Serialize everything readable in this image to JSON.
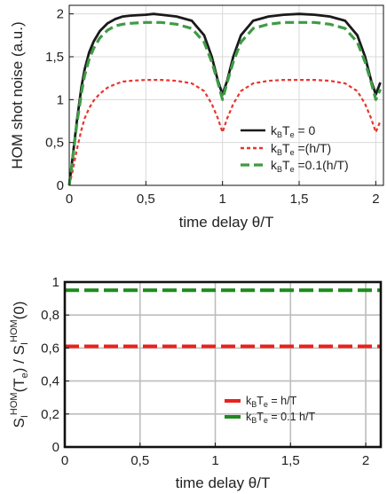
{
  "chart_data": [
    {
      "type": "line",
      "xlabel": "time delay θ/T",
      "ylabel": "HOM shot noise (a.u.)",
      "xlim": [
        0,
        2.05
      ],
      "ylim": [
        0,
        2.1
      ],
      "x_ticks": [
        "0",
        "0,5",
        "1",
        "1,5",
        "2"
      ],
      "y_ticks": [
        "0",
        "0,5",
        "1",
        "1,5",
        "2"
      ],
      "x_tick_values": [
        0,
        0.5,
        1,
        1.5,
        2
      ],
      "y_tick_values": [
        0,
        0.5,
        1,
        1.5,
        2
      ],
      "grid": true,
      "legend_position": "bottom-right",
      "series": [
        {
          "name": "kBTe = 0",
          "color": "#1a1a1a",
          "style": "solid",
          "x": [
            0,
            0.02,
            0.05,
            0.08,
            0.1,
            0.13,
            0.16,
            0.2,
            0.25,
            0.3,
            0.35,
            0.4,
            0.5,
            0.55,
            0.6,
            0.7,
            0.8,
            0.88,
            0.93,
            0.97,
            1.0,
            1.03,
            1.07,
            1.12,
            1.2,
            1.3,
            1.4,
            1.5,
            1.6,
            1.7,
            1.8,
            1.88,
            1.93,
            1.97,
            2.0,
            2.03
          ],
          "y": [
            0,
            0.3,
            0.75,
            1.15,
            1.35,
            1.55,
            1.68,
            1.8,
            1.89,
            1.94,
            1.97,
            1.98,
            1.99,
            2.0,
            1.99,
            1.97,
            1.92,
            1.75,
            1.5,
            1.22,
            1.06,
            1.22,
            1.5,
            1.75,
            1.92,
            1.97,
            1.99,
            2.0,
            1.99,
            1.97,
            1.92,
            1.75,
            1.5,
            1.22,
            1.06,
            1.2
          ]
        },
        {
          "name": "kBTe =(h/T)",
          "color": "#e8352e",
          "style": "dotted",
          "x": [
            0,
            0.02,
            0.05,
            0.08,
            0.1,
            0.13,
            0.16,
            0.2,
            0.25,
            0.3,
            0.35,
            0.4,
            0.5,
            0.6,
            0.7,
            0.8,
            0.88,
            0.93,
            0.97,
            1.0,
            1.03,
            1.07,
            1.12,
            1.2,
            1.3,
            1.4,
            1.5,
            1.6,
            1.7,
            1.8,
            1.88,
            1.93,
            1.97,
            2.0,
            2.03
          ],
          "y": [
            0,
            0.15,
            0.42,
            0.65,
            0.78,
            0.9,
            0.99,
            1.07,
            1.14,
            1.18,
            1.21,
            1.22,
            1.23,
            1.23,
            1.22,
            1.19,
            1.1,
            0.95,
            0.78,
            0.62,
            0.78,
            0.95,
            1.1,
            1.19,
            1.22,
            1.23,
            1.23,
            1.23,
            1.22,
            1.19,
            1.1,
            0.95,
            0.78,
            0.62,
            0.75
          ]
        },
        {
          "name": "kBTe =0.1(h/T)",
          "color": "#3e9b45",
          "style": "dashed",
          "x": [
            0,
            0.02,
            0.05,
            0.08,
            0.1,
            0.13,
            0.16,
            0.2,
            0.25,
            0.3,
            0.35,
            0.4,
            0.5,
            0.6,
            0.7,
            0.8,
            0.88,
            0.93,
            0.97,
            1.0,
            1.03,
            1.07,
            1.12,
            1.2,
            1.3,
            1.4,
            1.5,
            1.6,
            1.7,
            1.8,
            1.88,
            1.93,
            1.97,
            2.0,
            2.03
          ],
          "y": [
            0,
            0.28,
            0.72,
            1.08,
            1.28,
            1.47,
            1.6,
            1.72,
            1.81,
            1.86,
            1.88,
            1.89,
            1.9,
            1.9,
            1.88,
            1.83,
            1.67,
            1.44,
            1.2,
            1.0,
            1.2,
            1.44,
            1.67,
            1.83,
            1.88,
            1.9,
            1.9,
            1.9,
            1.88,
            1.83,
            1.67,
            1.44,
            1.2,
            1.0,
            1.12
          ]
        }
      ]
    },
    {
      "type": "line",
      "xlabel": "time delay θ/T",
      "ylabel": "S_I^HOM(T_e) / S_I^HOM(0)",
      "ylabel_parts": {
        "s1": "S",
        "sub1": "I",
        "sup1": "HOM",
        "arg1": "(T",
        "arg1_sub": "e",
        "arg1_close": ")",
        "sep": " / ",
        "s2": "S",
        "sub2": "I",
        "sup2": "HOM",
        "arg2": "(0)"
      },
      "xlim": [
        0,
        2.1
      ],
      "ylim": [
        0,
        1
      ],
      "x_ticks": [
        "0",
        "0,5",
        "1",
        "1,5",
        "2"
      ],
      "y_ticks": [
        "0",
        "0,2",
        "0,4",
        "0,6",
        "0,8",
        "1"
      ],
      "x_tick_values": [
        0,
        0.5,
        1,
        1.5,
        2
      ],
      "y_tick_values": [
        0,
        0.2,
        0.4,
        0.6,
        0.8,
        1
      ],
      "grid": true,
      "legend_position": "bottom-right",
      "series": [
        {
          "name": "kBTe = h/T",
          "color": "#e8211c",
          "style": "dashed",
          "x": [
            0,
            2.1
          ],
          "y": [
            0.61,
            0.61
          ]
        },
        {
          "name": "kBTe = 0.1 h/T",
          "color": "#1e8a1e",
          "style": "dashed",
          "x": [
            0,
            2.1
          ],
          "y": [
            0.95,
            0.95
          ]
        }
      ]
    }
  ],
  "legend_labels": {
    "top": [
      {
        "k": "k",
        "sub1": "B",
        "t": "T",
        "sub2": "e",
        "rest": " = 0"
      },
      {
        "k": "k",
        "sub1": "B",
        "t": "T",
        "sub2": "e",
        "rest": " =(h/T)"
      },
      {
        "k": "k",
        "sub1": "B",
        "t": "T",
        "sub2": "e",
        "rest": " =0.1(h/T)"
      }
    ],
    "bottom": [
      {
        "k": "k",
        "sub1": "B",
        "t": "T",
        "sub2": "e",
        "rest": " = h/T"
      },
      {
        "k": "k",
        "sub1": "B",
        "t": "T",
        "sub2": "e",
        "rest": " = 0.1 h/T"
      }
    ]
  }
}
